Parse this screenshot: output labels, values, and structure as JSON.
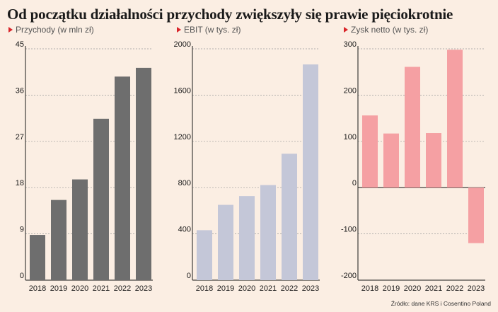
{
  "title": "Od początku działalności przychody zwiększyły się prawie pięciokrotnie",
  "source": "Źródło: dane KRS i Cosentino Poland",
  "colors": {
    "background": "#fbeee3",
    "marker": "#d9252a"
  },
  "chart_data": [
    {
      "type": "bar",
      "title": "Przychody (w mln zł)",
      "categories": [
        "2018",
        "2019",
        "2020",
        "2021",
        "2022",
        "2023"
      ],
      "values": [
        8.8,
        15.6,
        19.6,
        31.4,
        39.6,
        41.3
      ],
      "ylim": [
        0,
        45
      ],
      "yticks": [
        "0",
        "9",
        "18",
        "27",
        "36",
        "45"
      ],
      "color": "#6e6e6e",
      "grid": true
    },
    {
      "type": "bar",
      "title": "EBIT (w tys. zł)",
      "categories": [
        "2018",
        "2019",
        "2020",
        "2021",
        "2022",
        "2023"
      ],
      "values": [
        432,
        651,
        727,
        822,
        1093,
        1865
      ],
      "ylim": [
        0,
        2000
      ],
      "yticks": [
        "0",
        "400",
        "800",
        "1200",
        "1600",
        "2000"
      ],
      "color": "#c4c7d8",
      "grid": true
    },
    {
      "type": "bar",
      "title": "Zysk netto (w tys. zł)",
      "categories": [
        "2018",
        "2019",
        "2020",
        "2021",
        "2022",
        "2023"
      ],
      "values": [
        156,
        117,
        261,
        118,
        298,
        -120
      ],
      "ylim": [
        -200,
        300
      ],
      "yticks": [
        "-200",
        "-100",
        "0",
        "100",
        "200",
        "300"
      ],
      "color": "#f5a0a3",
      "grid": true
    }
  ]
}
